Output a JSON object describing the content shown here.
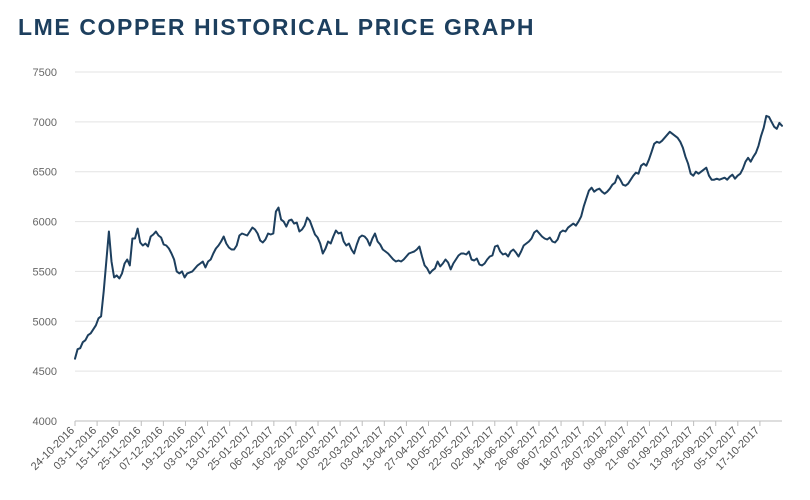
{
  "colors": {
    "line": "#1d3f5e",
    "grid": "#e3e3e3",
    "axis": "#bdbdbd",
    "title": "#1d3f5e"
  },
  "chart_data": {
    "type": "line",
    "title": "LME COPPER HISTORICAL PRICE GRAPH",
    "xlabel": "",
    "ylabel": "",
    "ylim": [
      4000,
      7500
    ],
    "yticks": [
      4000,
      4500,
      5000,
      5500,
      6000,
      6500,
      7000,
      7500
    ],
    "grid": "horizontal",
    "legend": "none",
    "x_ticklabels": [
      "24-10-2016",
      "03-11-2016",
      "15-11-2016",
      "25-11-2016",
      "07-12-2016",
      "19-12-2016",
      "03-01-2017",
      "13-01-2017",
      "25-01-2017",
      "06-02-2017",
      "16-02-2017",
      "28-02-2017",
      "10-03-2017",
      "22-03-2017",
      "03-04-2017",
      "13-04-2017",
      "27-04-2017",
      "10-05-2017",
      "22-05-2017",
      "02-06-2017",
      "14-06-2017",
      "26-06-2017",
      "06-07-2017",
      "18-07-2017",
      "28-07-2017",
      "09-08-2017",
      "21-08-2017",
      "01-09-2017",
      "13-09-2017",
      "25-09-2017",
      "05-10-2017",
      "17-10-2017"
    ],
    "series": [
      {
        "name": "LME Copper",
        "values": [
          4625,
          4720,
          4730,
          4790,
          4810,
          4860,
          4880,
          4920,
          4960,
          5030,
          5050,
          5300,
          5600,
          5900,
          5600,
          5440,
          5460,
          5430,
          5480,
          5580,
          5620,
          5560,
          5830,
          5830,
          5930,
          5790,
          5760,
          5780,
          5750,
          5850,
          5870,
          5900,
          5860,
          5840,
          5770,
          5760,
          5730,
          5680,
          5620,
          5500,
          5480,
          5500,
          5440,
          5480,
          5490,
          5500,
          5530,
          5560,
          5580,
          5600,
          5540,
          5600,
          5620,
          5680,
          5730,
          5760,
          5800,
          5850,
          5780,
          5740,
          5720,
          5720,
          5760,
          5860,
          5880,
          5870,
          5860,
          5900,
          5940,
          5920,
          5880,
          5810,
          5790,
          5820,
          5880,
          5870,
          5880,
          6100,
          6140,
          6020,
          6000,
          5950,
          6010,
          6020,
          5980,
          5990,
          5900,
          5920,
          5960,
          6040,
          6010,
          5940,
          5870,
          5840,
          5780,
          5680,
          5730,
          5800,
          5780,
          5850,
          5910,
          5880,
          5890,
          5800,
          5760,
          5780,
          5720,
          5680,
          5770,
          5840,
          5860,
          5850,
          5820,
          5760,
          5830,
          5880,
          5800,
          5770,
          5720,
          5700,
          5680,
          5650,
          5620,
          5600,
          5610,
          5600,
          5620,
          5650,
          5680,
          5690,
          5700,
          5720,
          5750,
          5650,
          5560,
          5530,
          5480,
          5510,
          5530,
          5600,
          5550,
          5580,
          5620,
          5590,
          5520,
          5580,
          5620,
          5660,
          5680,
          5680,
          5670,
          5700,
          5620,
          5610,
          5630,
          5570,
          5560,
          5580,
          5620,
          5650,
          5660,
          5750,
          5760,
          5700,
          5670,
          5680,
          5650,
          5700,
          5720,
          5690,
          5650,
          5700,
          5760,
          5780,
          5800,
          5830,
          5890,
          5910,
          5880,
          5850,
          5830,
          5820,
          5840,
          5800,
          5790,
          5820,
          5890,
          5910,
          5900,
          5940,
          5960,
          5980,
          5960,
          6000,
          6050,
          6150,
          6230,
          6310,
          6340,
          6300,
          6320,
          6330,
          6300,
          6280,
          6300,
          6330,
          6370,
          6390,
          6460,
          6420,
          6370,
          6360,
          6380,
          6420,
          6460,
          6490,
          6480,
          6560,
          6580,
          6560,
          6620,
          6700,
          6780,
          6800,
          6790,
          6810,
          6840,
          6870,
          6900,
          6880,
          6860,
          6840,
          6800,
          6740,
          6650,
          6580,
          6480,
          6460,
          6500,
          6480,
          6500,
          6520,
          6540,
          6460,
          6420,
          6420,
          6430,
          6420,
          6430,
          6440,
          6420,
          6450,
          6470,
          6430,
          6460,
          6480,
          6530,
          6600,
          6640,
          6600,
          6650,
          6690,
          6760,
          6860,
          6940,
          7060,
          7050,
          7000,
          6950,
          6930,
          6990,
          6960
        ]
      }
    ]
  }
}
